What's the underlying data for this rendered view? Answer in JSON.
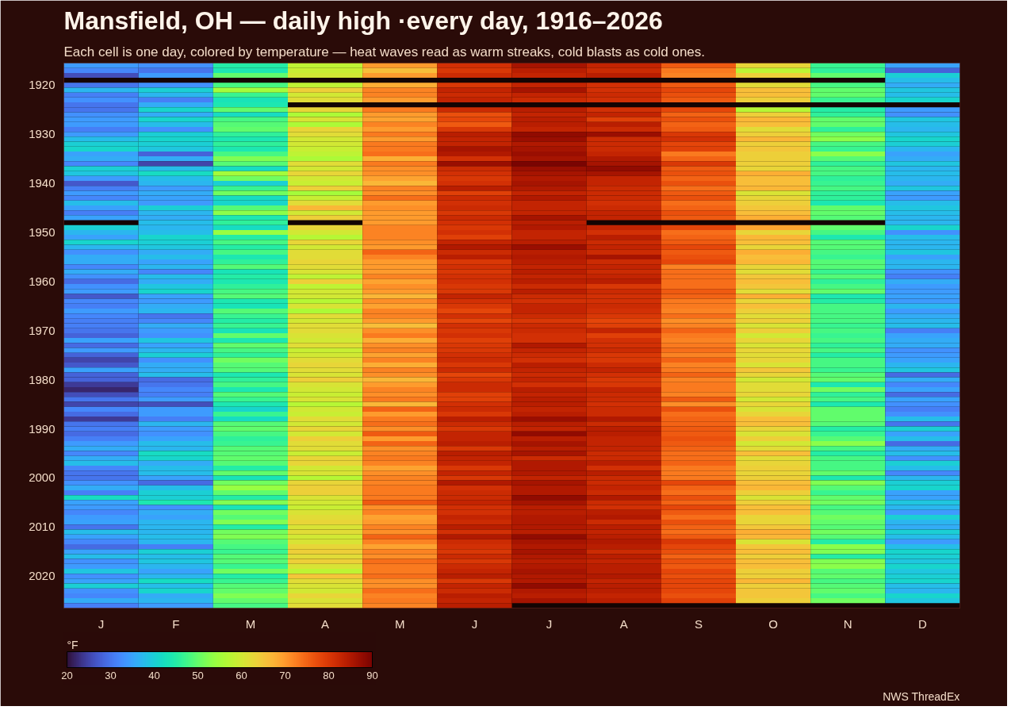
{
  "chart_data": {
    "type": "heatmap",
    "title": "Mansfield, OH — daily high ·every day, 1916–2026",
    "subtitle": "Each cell is one day, colored by temperature — heat waves read as warm streaks, cold blasts as cold ones.",
    "clabel": "°F",
    "annotations": [
      "NWS ThreadEx"
    ],
    "clim": [
      20,
      90
    ],
    "cticks": [
      20,
      30,
      40,
      50,
      60,
      70,
      80,
      90
    ],
    "categories": [
      "J",
      "F",
      "M",
      "A",
      "M",
      "J",
      "J",
      "A",
      "S",
      "O",
      "N",
      "D"
    ],
    "y_categories": [
      null,
      null,
      null,
      null,
      "1920",
      null,
      null,
      null,
      null,
      null,
      null,
      null,
      null,
      null,
      "1930",
      null,
      null,
      null,
      null,
      null,
      null,
      null,
      null,
      null,
      "1940",
      null,
      null,
      null,
      null,
      null,
      null,
      null,
      null,
      null,
      "1950",
      null,
      null,
      null,
      null,
      null,
      null,
      null,
      null,
      null,
      "1960",
      null,
      null,
      null,
      null,
      null,
      null,
      null,
      null,
      null,
      "1970",
      null,
      null,
      null,
      null,
      null,
      null,
      null,
      null,
      null,
      "1980",
      null,
      null,
      null,
      null,
      null,
      null,
      null,
      null,
      null,
      "1990",
      null,
      null,
      null,
      null,
      null,
      null,
      null,
      null,
      null,
      "2000",
      null,
      null,
      null,
      null,
      null,
      null,
      null,
      null,
      null,
      "2010",
      null,
      null,
      null,
      null,
      null,
      null,
      null,
      null,
      null,
      "2020",
      null,
      null,
      null,
      null,
      null,
      null
    ],
    "cells": [
      [
        34,
        33,
        45,
        58,
        70,
        81,
        86,
        83,
        76,
        63,
        47,
        35
      ],
      [
        32,
        30,
        44,
        59,
        66,
        80,
        84,
        82,
        73,
        58,
        46,
        28
      ],
      [
        26,
        34,
        50,
        60,
        70,
        82,
        83,
        84,
        72,
        64,
        50,
        40
      ],
      [
        null,
        null,
        null,
        null,
        null,
        null,
        null,
        null,
        null,
        null,
        null,
        38
      ],
      [
        30,
        33,
        48,
        58,
        68,
        80,
        83,
        81,
        76,
        62,
        48,
        36
      ],
      [
        37,
        40,
        55,
        64,
        72,
        83,
        86,
        81,
        78,
        66,
        50,
        39
      ],
      [
        31,
        37,
        47,
        60,
        72,
        82,
        83,
        82,
        77,
        66,
        50,
        38
      ],
      [
        33,
        31,
        43,
        62,
        70,
        83,
        82,
        81,
        76,
        64,
        47,
        41
      ],
      [
        30,
        36,
        44,
        null,
        null,
        null,
        null,
        null,
        null,
        null,
        null,
        null
      ],
      [
        30,
        41,
        50,
        63,
        73,
        82,
        84,
        81,
        78,
        57,
        45,
        34
      ],
      [
        33,
        36,
        42,
        56,
        70,
        77,
        83,
        83,
        75,
        64,
        46,
        33
      ],
      [
        34,
        41,
        48,
        61,
        69,
        78,
        84,
        79,
        77,
        67,
        50,
        39
      ],
      [
        34,
        38,
        49,
        56,
        72,
        76,
        84,
        84,
        75,
        66,
        50,
        38
      ],
      [
        31,
        33,
        50,
        63,
        70,
        80,
        83,
        82,
        76,
        62,
        46,
        37
      ],
      [
        34,
        40,
        46,
        62,
        73,
        84,
        88,
        87,
        80,
        64,
        51,
        39
      ],
      [
        38,
        41,
        44,
        60,
        70,
        83,
        87,
        82,
        81,
        67,
        53,
        41
      ],
      [
        40,
        40,
        46,
        60,
        73,
        83,
        85,
        82,
        78,
        64,
        48,
        40
      ],
      [
        41,
        39,
        44,
        59,
        73,
        86,
        86,
        82,
        79,
        65,
        47,
        37
      ],
      [
        35,
        28,
        48,
        58,
        74,
        85,
        87,
        83,
        73,
        64,
        53,
        35
      ],
      [
        36,
        36,
        52,
        56,
        68,
        81,
        86,
        85,
        75,
        64,
        49,
        36
      ],
      [
        32,
        25,
        49,
        62,
        73,
        87,
        90,
        86,
        80,
        64,
        46,
        39
      ],
      [
        40,
        38,
        42,
        60,
        71,
        82,
        87,
        88,
        76,
        63,
        48,
        37
      ],
      [
        39,
        42,
        55,
        63,
        71,
        81,
        86,
        86,
        77,
        68,
        48,
        38
      ],
      [
        34,
        38,
        51,
        60,
        69,
        80,
        85,
        83,
        75,
        66,
        46,
        37
      ],
      [
        27,
        37,
        40,
        59,
        67,
        81,
        86,
        83,
        77,
        66,
        47,
        36
      ],
      [
        31,
        34,
        47,
        64,
        72,
        84,
        85,
        82,
        74,
        67,
        48,
        39
      ],
      [
        34,
        36,
        51,
        55,
        71,
        79,
        83,
        82,
        76,
        61,
        46,
        35
      ],
      [
        32,
        35,
        42,
        59,
        74,
        82,
        85,
        82,
        77,
        63,
        46,
        34
      ],
      [
        38,
        34,
        41,
        62,
        70,
        81,
        83,
        81,
        74,
        64,
        44,
        38
      ],
      [
        35,
        40,
        49,
        67,
        71,
        82,
        83,
        82,
        75,
        65,
        50,
        39
      ],
      [
        31,
        37,
        53,
        60,
        70,
        80,
        83,
        83,
        77,
        66,
        50,
        38
      ],
      [
        35,
        36,
        44,
        64,
        70,
        82,
        86,
        83,
        76,
        68,
        49,
        37
      ],
      [
        null,
        38,
        46,
        null,
        70,
        81,
        84,
        null,
        null,
        null,
        null,
        37
      ],
      [
        40,
        37,
        42,
        63,
        72,
        80,
        85,
        83,
        78,
        69,
        50,
        41
      ],
      [
        37,
        38,
        54,
        60,
        72,
        81,
        83,
        81,
        74,
        63,
        48,
        33
      ],
      [
        35,
        41,
        45,
        57,
        72,
        79,
        83,
        84,
        75,
        67,
        44,
        38
      ],
      [
        41,
        40,
        48,
        63,
        71,
        83,
        84,
        82,
        76,
        66,
        49,
        37
      ],
      [
        37,
        39,
        45,
        60,
        70,
        85,
        87,
        83,
        78,
        63,
        49,
        37
      ],
      [
        33,
        36,
        48,
        62,
        75,
        82,
        84,
        82,
        76,
        68,
        48,
        39
      ],
      [
        36,
        38,
        44,
        62,
        72,
        84,
        85,
        86,
        77,
        66,
        47,
        35
      ],
      [
        36,
        35,
        46,
        63,
        70,
        80,
        84,
        82,
        78,
        67,
        49,
        37
      ],
      [
        32,
        37,
        49,
        62,
        70,
        81,
        83,
        83,
        72,
        63,
        49,
        37
      ],
      [
        36,
        32,
        43,
        61,
        70,
        80,
        84,
        82,
        74,
        62,
        47,
        33
      ],
      [
        33,
        38,
        45,
        58,
        72,
        81,
        83,
        83,
        74,
        65,
        49,
        31
      ],
      [
        29,
        36,
        44,
        64,
        69,
        81,
        84,
        84,
        74,
        66,
        46,
        36
      ],
      [
        33,
        39,
        46,
        58,
        71,
        80,
        82,
        80,
        74,
        65,
        48,
        34
      ],
      [
        34,
        41,
        48,
        60,
        70,
        80,
        84,
        82,
        76,
        62,
        50,
        34
      ],
      [
        27,
        35,
        49,
        60,
        67,
        83,
        82,
        81,
        75,
        68,
        44,
        35
      ],
      [
        32,
        34,
        44,
        57,
        71,
        81,
        81,
        81,
        73,
        63,
        45,
        34
      ],
      [
        31,
        36,
        43,
        61,
        69,
        80,
        83,
        82,
        73,
        66,
        48,
        37
      ],
      [
        34,
        37,
        49,
        56,
        72,
        78,
        83,
        81,
        72,
        64,
        48,
        34
      ],
      [
        32,
        30,
        47,
        62,
        72,
        81,
        82,
        80,
        74,
        62,
        48,
        36
      ],
      [
        31,
        32,
        45,
        60,
        70,
        78,
        80,
        78,
        71,
        64,
        48,
        37
      ],
      [
        31,
        36,
        47,
        62,
        66,
        81,
        82,
        79,
        72,
        61,
        47,
        38
      ],
      [
        30,
        34,
        43,
        62,
        71,
        80,
        82,
        83,
        75,
        64,
        48,
        31
      ],
      [
        28,
        33,
        50,
        61,
        73,
        81,
        81,
        79,
        73,
        60,
        47,
        35
      ],
      [
        35,
        39,
        44,
        60,
        68,
        79,
        81,
        81,
        72,
        63,
        48,
        36
      ],
      [
        29,
        35,
        50,
        62,
        71,
        80,
        85,
        81,
        73,
        61,
        46,
        36
      ],
      [
        34,
        37,
        48,
        59,
        72,
        80,
        83,
        82,
        74,
        63,
        48,
        33
      ],
      [
        28,
        40,
        46,
        60,
        69,
        81,
        82,
        80,
        72,
        62,
        45,
        34
      ],
      [
        25,
        33,
        51,
        62,
        72,
        82,
        81,
        80,
        75,
        63,
        48,
        35
      ],
      [
        27,
        36,
        49,
        63,
        68,
        80,
        84,
        82,
        72,
        61,
        48,
        37
      ],
      [
        35,
        36,
        49,
        62,
        72,
        82,
        83,
        83,
        73,
        65,
        47,
        39
      ],
      [
        28,
        38,
        44,
        61,
        71,
        78,
        82,
        81,
        75,
        63,
        49,
        29
      ],
      [
        28,
        29,
        46,
        64,
        67,
        80,
        83,
        80,
        72,
        60,
        50,
        36
      ],
      [
        24,
        30,
        48,
        61,
        70,
        82,
        81,
        80,
        73,
        62,
        44,
        32
      ],
      [
        22,
        32,
        44,
        60,
        72,
        82,
        84,
        83,
        73,
        62,
        51,
        35
      ],
      [
        26,
        31,
        49,
        59,
        71,
        79,
        83,
        82,
        72,
        63,
        46,
        29
      ],
      [
        30,
        34,
        47,
        61,
        73,
        79,
        84,
        82,
        76,
        60,
        48,
        35
      ],
      [
        25,
        26,
        44,
        57,
        67,
        81,
        84,
        81,
        71,
        63,
        44,
        33
      ],
      [
        32,
        34,
        41,
        60,
        75,
        82,
        83,
        82,
        77,
        61,
        50,
        31
      ],
      [
        29,
        34,
        47,
        59,
        70,
        80,
        84,
        82,
        74,
        63,
        50,
        33
      ],
      [
        24,
        31,
        42,
        62,
        73,
        84,
        87,
        85,
        75,
        66,
        50,
        38
      ],
      [
        30,
        37,
        49,
        60,
        74,
        82,
        84,
        82,
        75,
        66,
        49,
        30
      ],
      [
        31,
        34,
        50,
        63,
        71,
        80,
        83,
        84,
        76,
        63,
        45,
        40
      ],
      [
        29,
        33,
        48,
        60,
        76,
        83,
        88,
        84,
        76,
        61,
        47,
        35
      ],
      [
        31,
        35,
        46,
        64,
        70,
        83,
        84,
        83,
        77,
        64,
        49,
        38
      ],
      [
        34,
        38,
        47,
        62,
        75,
        84,
        86,
        83,
        76,
        60,
        53,
        29
      ],
      [
        36,
        37,
        49,
        62,
        71,
        80,
        84,
        83,
        75,
        62,
        48,
        36
      ],
      [
        32,
        42,
        49,
        59,
        72,
        84,
        86,
        82,
        74,
        66,
        45,
        38
      ],
      [
        36,
        41,
        50,
        63,
        73,
        83,
        82,
        82,
        74,
        62,
        48,
        33
      ],
      [
        38,
        36,
        49,
        63,
        72,
        83,
        85,
        84,
        75,
        63,
        48,
        40
      ],
      [
        32,
        38,
        45,
        60,
        69,
        80,
        85,
        81,
        73,
        64,
        48,
        38
      ],
      [
        30,
        38,
        50,
        61,
        71,
        83,
        85,
        84,
        73,
        63,
        50,
        32
      ],
      [
        30,
        35,
        43,
        57,
        72,
        80,
        83,
        82,
        73,
        64,
        44,
        37
      ],
      [
        33,
        29,
        51,
        63,
        72,
        85,
        86,
        82,
        78,
        66,
        52,
        40
      ],
      [
        36,
        38,
        54,
        64,
        73,
        81,
        85,
        83,
        75,
        67,
        49,
        41
      ],
      [
        31,
        40,
        50,
        64,
        73,
        82,
        85,
        82,
        74,
        64,
        47,
        35
      ],
      [
        42,
        40,
        45,
        61,
        73,
        82,
        88,
        85,
        77,
        61,
        50,
        35
      ],
      [
        35,
        44,
        52,
        60,
        76,
        83,
        86,
        82,
        75,
        64,
        51,
        39
      ],
      [
        34,
        33,
        43,
        59,
        71,
        81,
        84,
        81,
        78,
        66,
        48,
        37
      ],
      [
        32,
        36,
        51,
        61,
        72,
        81,
        84,
        84,
        76,
        66,
        49,
        34
      ],
      [
        34,
        35,
        49,
        62,
        69,
        83,
        85,
        85,
        74,
        63,
        51,
        40
      ],
      [
        35,
        37,
        52,
        63,
        70,
        82,
        85,
        82,
        77,
        63,
        50,
        37
      ],
      [
        30,
        37,
        45,
        61,
        72,
        84,
        85,
        84,
        75,
        65,
        49,
        36
      ],
      [
        38,
        37,
        51,
        62,
        71,
        81,
        84,
        83,
        74,
        68,
        51,
        40
      ],
      [
        35,
        38,
        52,
        60,
        75,
        85,
        88,
        84,
        76,
        67,
        49,
        38
      ],
      [
        32,
        37,
        49,
        61,
        72,
        82,
        86,
        85,
        80,
        61,
        45,
        34
      ],
      [
        29,
        31,
        48,
        63,
        69,
        81,
        85,
        84,
        78,
        65,
        53,
        38
      ],
      [
        35,
        40,
        47,
        64,
        72,
        80,
        86,
        82,
        77,
        66,
        52,
        41
      ],
      [
        38,
        38,
        49,
        62,
        71,
        82,
        85,
        84,
        75,
        64,
        45,
        40
      ],
      [
        33,
        39,
        49,
        64,
        74,
        80,
        84,
        83,
        77,
        66,
        52,
        39
      ],
      [
        34,
        37,
        47,
        61,
        73,
        82,
        85,
        84,
        76,
        66,
        53,
        41
      ],
      [
        39,
        35,
        51,
        58,
        73,
        83,
        86,
        84,
        78,
        64,
        49,
        39
      ],
      [
        33,
        37,
        45,
        65,
        74,
        84,
        85,
        85,
        77,
        64,
        50,
        40
      ],
      [
        35,
        42,
        47,
        62,
        71,
        80,
        85,
        83,
        78,
        67,
        48,
        41
      ],
      [
        40,
        38,
        49,
        61,
        71,
        83,
        88,
        84,
        78,
        64,
        49,
        38
      ],
      [
        33,
        41,
        50,
        60,
        74,
        82,
        85,
        84,
        78,
        65,
        50,
        37
      ],
      [
        32,
        36,
        52,
        63,
        72,
        84,
        84,
        83,
        77,
        65,
        48,
        41
      ],
      [
        36,
        37,
        50,
        61,
        73,
        83,
        86,
        84,
        79,
        64,
        51,
        39
      ],
      [
        31,
        34,
        48,
        62,
        72,
        84,
        null,
        null,
        null,
        null,
        null,
        null
      ]
    ]
  }
}
